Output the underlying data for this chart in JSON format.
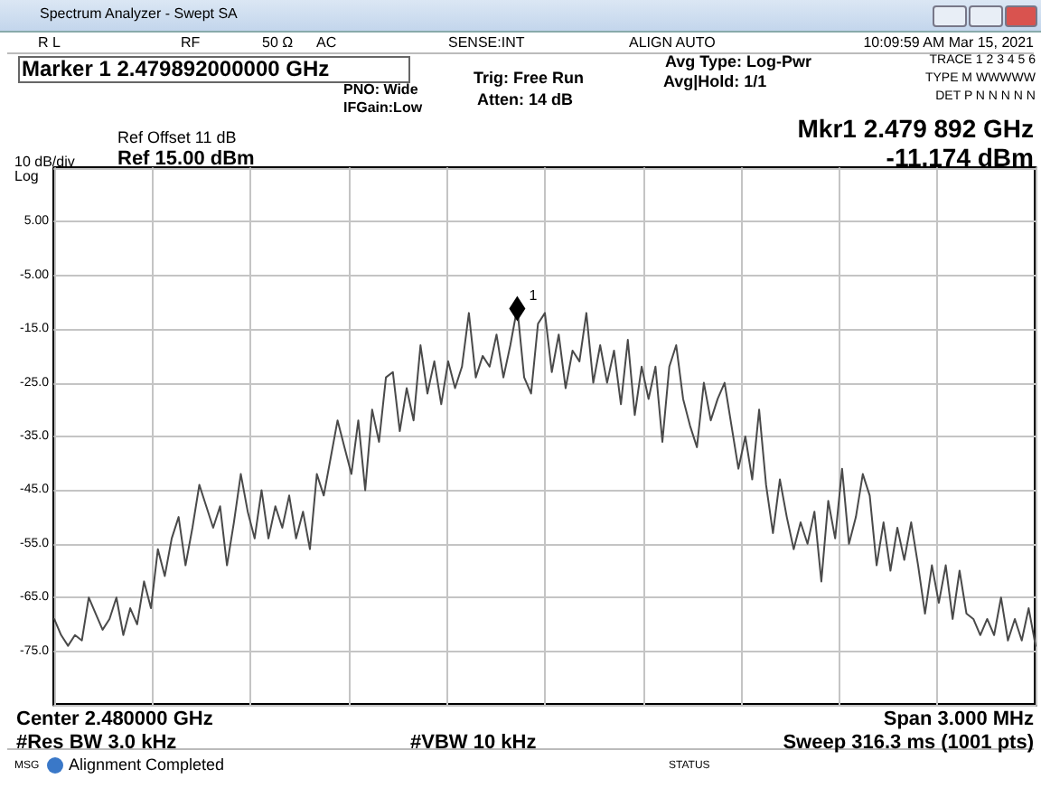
{
  "chart_data": {
    "type": "line",
    "title": "Spectrum Analyzer - Swept SA",
    "color": "#4a4a4a",
    "marker": "none",
    "grid": true,
    "tick_labels": "y",
    "categories": [
      null,
      null,
      null,
      null,
      null,
      null,
      null,
      null,
      null,
      null,
      null,
      null,
      null,
      null,
      null,
      null,
      null,
      null,
      null,
      null,
      null,
      null,
      null,
      null,
      null,
      null,
      null,
      null,
      null,
      null,
      null,
      null,
      null,
      null,
      null,
      null,
      null,
      null,
      null,
      null,
      null,
      null,
      null,
      null,
      null,
      null,
      null,
      null,
      null,
      null,
      null,
      null,
      null,
      null,
      null,
      null,
      null,
      null,
      null,
      null,
      null,
      null,
      null,
      null,
      null,
      null,
      null,
      null,
      null,
      null,
      null,
      null,
      null,
      null,
      null,
      null,
      null,
      null,
      null,
      null,
      null,
      null,
      null,
      null,
      null,
      null,
      null,
      null,
      null,
      null,
      null,
      null,
      null,
      null,
      null,
      null,
      null,
      null,
      null,
      null,
      null,
      null,
      null,
      null,
      null,
      null,
      null,
      null,
      null,
      null,
      null,
      null,
      null,
      null,
      null,
      null,
      null,
      null,
      null,
      null,
      null,
      null,
      null,
      null,
      null,
      null,
      null,
      null,
      null,
      null,
      null,
      null,
      null,
      null,
      null,
      null,
      null,
      null,
      null,
      null,
      null,
      null,
      null
    ],
    "ylim": [
      -85,
      15
    ],
    "yticks": [
      {
        "value": 15,
        "label": null
      },
      {
        "value": 5,
        "label": "5.00"
      },
      {
        "value": -5,
        "label": "-5.00"
      },
      {
        "value": -15,
        "label": "-15.0"
      },
      {
        "value": -25,
        "label": "-25.0"
      },
      {
        "value": -35,
        "label": "-35.0"
      },
      {
        "value": -45,
        "label": "-45.0"
      },
      {
        "value": -55,
        "label": "-55.0"
      },
      {
        "value": -65,
        "label": "-65.0"
      },
      {
        "value": -75,
        "label": "-75.0"
      },
      {
        "value": -85,
        "label": null
      }
    ],
    "values": [
      -69,
      -72,
      -74,
      -72,
      -73,
      -65,
      -68,
      -71,
      -69,
      -65,
      -72,
      -67,
      -70,
      -62,
      -67,
      -56,
      -61,
      -54,
      -50,
      -59,
      -52,
      -44,
      -48,
      -52,
      -48,
      -59,
      -51,
      -42,
      -49,
      -54,
      -45,
      -54,
      -48,
      -52,
      -46,
      -54,
      -49,
      -56,
      -42,
      -46,
      -39,
      -32,
      -37,
      -42,
      -32,
      -45,
      -30,
      -36,
      -24,
      -23,
      -34,
      -26,
      -32,
      -18,
      -27,
      -21,
      -29,
      -21,
      -26,
      -22,
      -12,
      -24,
      -20,
      -22,
      -16,
      -24,
      -18,
      -11,
      -24,
      -27,
      -14,
      -12,
      -23,
      -16,
      -26,
      -19,
      -21,
      -12,
      -25,
      -18,
      -25,
      -19,
      -29,
      -17,
      -31,
      -22,
      -28,
      -22,
      -36,
      -22,
      -18,
      -28,
      -33,
      -37,
      -25,
      -32,
      -28,
      -25,
      -33,
      -41,
      -35,
      -43,
      -30,
      -44,
      -53,
      -43,
      -50,
      -56,
      -51,
      -55,
      -49,
      -62,
      -47,
      -54,
      -41,
      -55,
      -50,
      -42,
      -46,
      -59,
      -51,
      -60,
      -52,
      -58,
      -51,
      -59,
      -68,
      -59,
      -66,
      -59,
      -69,
      -60,
      -68,
      -69,
      -72,
      -69,
      -72,
      -65,
      -73,
      -69,
      -73,
      -67,
      -74
    ],
    "annotations": [
      "R L",
      "RF",
      "50 Ω",
      "AC",
      "SENSE:INT",
      "ALIGN AUTO",
      "10:09:59 AM Mar 15, 2021",
      "Marker 1 2.479892000000 GHz",
      "PNO: Wide",
      "IFGain:Low",
      "Trig: Free Run",
      "Atten: 14 dB",
      "Avg Type: Log-Pwr",
      "Avg|Hold: 1/1",
      "TRACE 1 2 3 4 5 6",
      "TYPE M WWWWW",
      "DET P N N N N N",
      "Mkr1 2.479 892 GHz",
      "-11.174 dBm",
      "Ref Offset 11 dB",
      "10 dB/div",
      "Ref 15.00 dBm",
      "Log",
      "Center 2.480000 GHz",
      "Span 3.000 MHz",
      "#Res BW 3.0 kHz",
      "#VBW 10 kHz",
      "Sweep  316.3 ms (1001 pts)",
      "MSG",
      "Alignment Completed",
      "STATUS",
      {
        "text": "1",
        "y": -11.174
      }
    ]
  }
}
